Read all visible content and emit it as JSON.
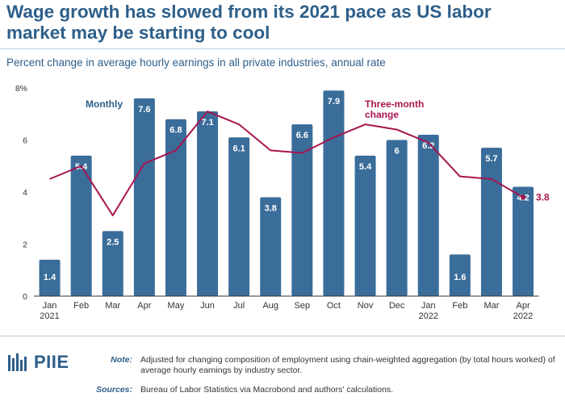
{
  "title": "Wage growth has slowed from its 2021 pace as US labor market may be starting to cool",
  "subtitle": "Percent change in average hourly earnings in all private industries, annual rate",
  "note_label": "Note:",
  "note_text": "Adjusted for changing composition of employment using chain-weighted aggregation (by total hours worked) of average hourly earnings by industry sector.",
  "sources_label": "Sources:",
  "sources_text": "Bureau of Labor Statistics via Macrobond and authors' calculations.",
  "logo_text": "PIIE",
  "colors": {
    "bar": "#3a6d9a",
    "line": "#a8154f",
    "accent": "#2d5f8a"
  },
  "chart_data": {
    "type": "bar",
    "categories": [
      "Jan\n2021",
      "Feb",
      "Mar",
      "Apr",
      "May",
      "Jun",
      "Jul",
      "Aug",
      "Sep",
      "Oct",
      "Nov",
      "Dec",
      "Jan\n2022",
      "Feb",
      "Mar",
      "Apr\n2022"
    ],
    "series": [
      {
        "name": "Monthly",
        "kind": "bar",
        "values": [
          1.4,
          5.4,
          2.5,
          7.6,
          6.8,
          7.1,
          6.1,
          3.8,
          6.6,
          7.9,
          5.4,
          6.0,
          6.2,
          1.6,
          5.7,
          4.2
        ]
      },
      {
        "name": "Three-month change",
        "kind": "line",
        "values": [
          4.5,
          5.0,
          3.1,
          5.1,
          5.6,
          7.1,
          6.6,
          5.6,
          5.5,
          6.1,
          6.6,
          6.4,
          5.9,
          4.6,
          4.5,
          3.8
        ]
      }
    ],
    "end_label": "3.8",
    "ylim": [
      0,
      8
    ],
    "yticks": [
      "0",
      "2",
      "4",
      "6",
      "8%"
    ],
    "legend": [
      "Monthly",
      "Three-month change"
    ]
  }
}
